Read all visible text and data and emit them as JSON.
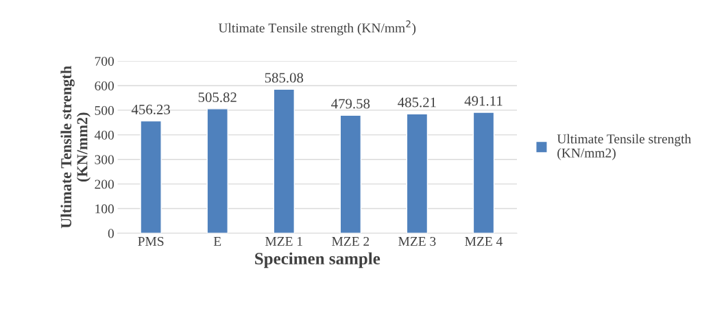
{
  "chart_data": {
    "type": "bar",
    "title": "Ultimate Tensile strength (KN/mm$^{2}$)",
    "xlabel": "Specimen sample",
    "ylabel": "Ultimate Tensile strength\n(KN/mm2)",
    "categories": [
      "PMS",
      "E",
      "MZE 1",
      "MZE 2",
      "MZE 3",
      "MZE 4"
    ],
    "series": [
      {
        "name": "Ultimate Tensile strength\n(KN/mm2)",
        "color": "#4f81bd",
        "values": [
          456.23,
          505.82,
          585.08,
          479.58,
          485.21,
          491.11
        ]
      }
    ],
    "ylim": [
      0,
      700
    ],
    "yticks": [
      0,
      100,
      200,
      300,
      400,
      500,
      600,
      700
    ],
    "grid": "y",
    "legend": "right",
    "data_labels": true
  }
}
